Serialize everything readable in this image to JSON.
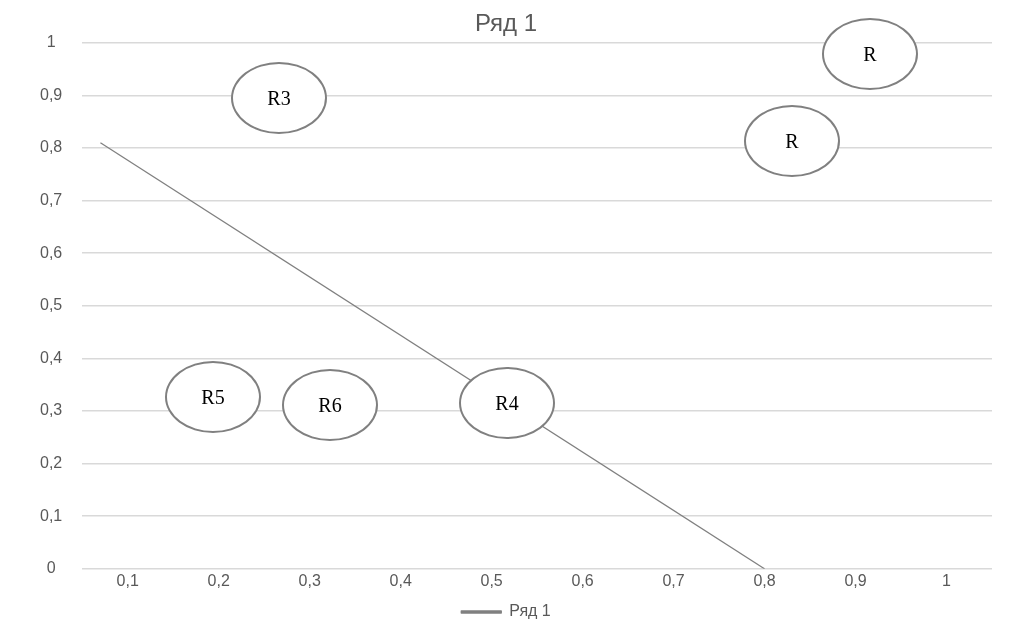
{
  "chart_data": {
    "type": "line",
    "title": "Ряд 1",
    "x": [
      0.07,
      0.8
    ],
    "series": [
      {
        "name": "Ряд 1",
        "color": "#808080",
        "values": [
          0.81,
          0
        ]
      }
    ],
    "xlim": [
      0.05,
      1.05
    ],
    "xticks": [
      {
        "value": 0.1,
        "label": "0,1"
      },
      {
        "value": 0.2,
        "label": "0,2"
      },
      {
        "value": 0.3,
        "label": "0,3"
      },
      {
        "value": 0.4,
        "label": "0,4"
      },
      {
        "value": 0.5,
        "label": "0,5"
      },
      {
        "value": 0.6,
        "label": "0,6"
      },
      {
        "value": 0.7,
        "label": "0,7"
      },
      {
        "value": 0.8,
        "label": "0,8"
      },
      {
        "value": 0.9,
        "label": "0,9"
      },
      {
        "value": 1,
        "label": "1"
      }
    ],
    "ylim": [
      0,
      1
    ],
    "yticks": [
      0,
      {
        "value": 0.1,
        "label": "0,1"
      },
      {
        "value": 0.2,
        "label": "0,2"
      },
      {
        "value": 0.3,
        "label": "0,3"
      },
      {
        "value": 0.4,
        "label": "0,4"
      },
      {
        "value": 0.5,
        "label": "0,5"
      },
      {
        "value": 0.6,
        "label": "0,6"
      },
      {
        "value": 0.7,
        "label": "0,7"
      },
      {
        "value": 0.8,
        "label": "0,8"
      },
      {
        "value": 0.9,
        "label": "0,9"
      },
      1
    ],
    "grid": "y",
    "legend": "bottom",
    "marker": "none",
    "line_style": "solid",
    "annotations": [
      "R3",
      "R5",
      "R6",
      "R4",
      "R",
      "R"
    ]
  }
}
